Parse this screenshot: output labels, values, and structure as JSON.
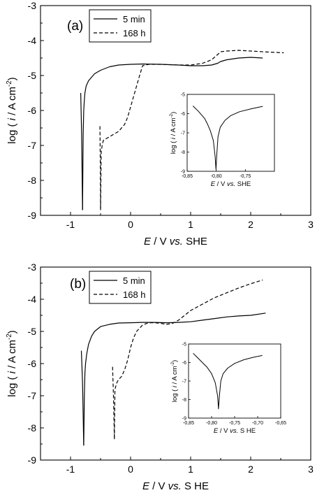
{
  "chart_data": [
    {
      "type": "line",
      "panel_label": "(a)",
      "xlabel": {
        "pre": "E",
        "mid": " / V ",
        "vs": "vs.",
        "post": " SHE"
      },
      "ylabel": {
        "pre": "log ( ",
        "i": "i",
        "mid": " /  A cm",
        "sup": "-2",
        "post": ")"
      },
      "xlim": [
        -1.5,
        3
      ],
      "ylim": [
        -9,
        -3
      ],
      "xticks": [
        -1,
        0,
        1,
        2,
        3
      ],
      "yticks": [
        -3,
        -4,
        -5,
        -6,
        -7,
        -8,
        -9
      ],
      "legend": "top-left",
      "series": [
        {
          "name": "5 min",
          "style": "solid",
          "x": [
            -0.8,
            -0.79,
            -0.78,
            -0.77,
            -0.76,
            -0.74,
            -0.7,
            -0.6,
            -0.5,
            -0.35,
            -0.2,
            0,
            0.2,
            0.5,
            0.8,
            1.0,
            1.2,
            1.35,
            1.45,
            1.5,
            1.6,
            1.8,
            2.0,
            2.2
          ],
          "y": [
            -8.85,
            -6.7,
            -6.0,
            -5.7,
            -5.5,
            -5.3,
            -5.15,
            -4.95,
            -4.85,
            -4.75,
            -4.7,
            -4.68,
            -4.67,
            -4.68,
            -4.7,
            -4.72,
            -4.72,
            -4.7,
            -4.65,
            -4.6,
            -4.55,
            -4.5,
            -4.48,
            -4.5
          ]
        },
        {
          "name": "5 min",
          "style": "solid",
          "x": [
            -0.83,
            -0.815,
            -0.8
          ],
          "y": [
            -5.5,
            -6.7,
            -8.85
          ]
        },
        {
          "name": "168 h",
          "style": "dashed",
          "x": [
            -0.5,
            -0.49,
            -0.47,
            -0.45,
            -0.4,
            -0.3,
            -0.2,
            -0.1,
            -0.05,
            0,
            0.05,
            0.1,
            0.15,
            0.2,
            0.3,
            0.5,
            0.8,
            1.0,
            1.2,
            1.35,
            1.45,
            1.5,
            1.6,
            1.8,
            2.0,
            2.3,
            2.55
          ],
          "y": [
            -8.85,
            -7.2,
            -6.95,
            -6.85,
            -6.8,
            -6.7,
            -6.6,
            -6.4,
            -6.2,
            -5.9,
            -5.6,
            -5.3,
            -5.0,
            -4.72,
            -4.68,
            -4.68,
            -4.7,
            -4.7,
            -4.65,
            -4.55,
            -4.4,
            -4.32,
            -4.3,
            -4.28,
            -4.3,
            -4.33,
            -4.35
          ]
        },
        {
          "name": "168 h",
          "style": "dashed",
          "x": [
            -0.51,
            -0.505,
            -0.5
          ],
          "y": [
            -6.45,
            -7.4,
            -8.85
          ]
        }
      ],
      "inset": {
        "xlabel": {
          "pre": "E",
          "mid": " / V ",
          "vs": "vs.",
          "post": " SHE"
        },
        "ylabel": {
          "pre": "log ( ",
          "i": "i",
          "mid": " /  A cm",
          "sup": "-2",
          "post": ")"
        },
        "xlim": [
          -0.85,
          -0.7
        ],
        "ylim": [
          -9,
          -5
        ],
        "xticks": [
          -0.85,
          -0.8,
          -0.75
        ],
        "xticklabels": [
          "-0,85",
          "-0,80",
          "-0,75"
        ],
        "yticks": [
          -5,
          -6,
          -7,
          -8,
          -9
        ],
        "x": [
          -0.84,
          -0.83,
          -0.82,
          -0.815,
          -0.81,
          -0.805,
          -0.802,
          -0.8005,
          -0.799,
          -0.797,
          -0.793,
          -0.785,
          -0.775,
          -0.76,
          -0.74,
          -0.72
        ],
        "y": [
          -5.6,
          -5.9,
          -6.25,
          -6.55,
          -6.9,
          -7.4,
          -8.2,
          -8.9,
          -8.1,
          -7.2,
          -6.7,
          -6.35,
          -6.1,
          -5.9,
          -5.75,
          -5.62
        ]
      }
    },
    {
      "type": "line",
      "panel_label": "(b)",
      "xlabel": {
        "pre": "E",
        "mid": " / V ",
        "vs": "vs.",
        "post": " S HE"
      },
      "ylabel": {
        "pre": "log ( ",
        "i": "i",
        "mid": " /  A cm",
        "sup": "-2",
        "post": ")"
      },
      "xlim": [
        -1.5,
        3
      ],
      "ylim": [
        -9,
        -3
      ],
      "xticks": [
        -1,
        0,
        1,
        2,
        3
      ],
      "yticks": [
        -3,
        -4,
        -5,
        -6,
        -7,
        -8,
        -9
      ],
      "legend": "top-left",
      "series": [
        {
          "name": "5 min",
          "style": "solid",
          "x": [
            -0.78,
            -0.77,
            -0.76,
            -0.75,
            -0.73,
            -0.7,
            -0.65,
            -0.6,
            -0.5,
            -0.35,
            -0.2,
            0,
            0.2,
            0.4,
            0.6,
            0.8,
            1.0,
            1.2,
            1.4,
            1.6,
            1.8,
            2.0,
            2.25
          ],
          "y": [
            -8.55,
            -7.0,
            -6.3,
            -6.0,
            -5.7,
            -5.4,
            -5.15,
            -5.0,
            -4.85,
            -4.78,
            -4.74,
            -4.73,
            -4.72,
            -4.72,
            -4.73,
            -4.72,
            -4.7,
            -4.65,
            -4.6,
            -4.55,
            -4.52,
            -4.5,
            -4.43
          ]
        },
        {
          "name": "5 min",
          "style": "solid",
          "x": [
            -0.82,
            -0.8,
            -0.78
          ],
          "y": [
            -5.6,
            -6.6,
            -8.55
          ]
        },
        {
          "name": "168 h",
          "style": "dashed",
          "x": [
            -0.27,
            -0.26,
            -0.23,
            -0.2,
            -0.15,
            -0.1,
            -0.05,
            0,
            0.05,
            0.1,
            0.2,
            0.3,
            0.4,
            0.5,
            0.6,
            0.7,
            0.8,
            0.9,
            1.0,
            1.2,
            1.4,
            1.6,
            1.8,
            2.0,
            2.2
          ],
          "y": [
            -8.35,
            -6.8,
            -6.6,
            -6.5,
            -6.4,
            -6.2,
            -5.9,
            -5.5,
            -5.2,
            -5.0,
            -4.8,
            -4.73,
            -4.73,
            -4.75,
            -4.78,
            -4.75,
            -4.65,
            -4.5,
            -4.35,
            -4.15,
            -3.95,
            -3.8,
            -3.65,
            -3.52,
            -3.4
          ]
        },
        {
          "name": "168 h",
          "style": "dashed",
          "x": [
            -0.3,
            -0.285,
            -0.27
          ],
          "y": [
            -6.1,
            -7.0,
            -8.35
          ]
        }
      ],
      "inset": {
        "xlabel": {
          "pre": "E",
          "mid": " / V ",
          "vs": "vs.",
          "post": " S HE"
        },
        "ylabel": {
          "pre": "log ( ",
          "i": "i",
          "mid": " /  A cm",
          "sup": "-2",
          "post": ")"
        },
        "xlim": [
          -0.85,
          -0.65
        ],
        "ylim": [
          -9,
          -5
        ],
        "xticks": [
          -0.85,
          -0.8,
          -0.75,
          -0.7,
          -0.65
        ],
        "xticklabels": [
          "-0,85",
          "-0,80",
          "-0,75",
          "-0,70",
          "-0,65"
        ],
        "yticks": [
          -5,
          -6,
          -7,
          -8,
          -9
        ],
        "x": [
          -0.84,
          -0.83,
          -0.82,
          -0.81,
          -0.8,
          -0.792,
          -0.787,
          -0.785,
          -0.783,
          -0.78,
          -0.775,
          -0.765,
          -0.75,
          -0.73,
          -0.71,
          -0.69
        ],
        "y": [
          -5.5,
          -5.75,
          -6.0,
          -6.25,
          -6.6,
          -7.1,
          -7.8,
          -8.5,
          -7.8,
          -7.0,
          -6.6,
          -6.3,
          -6.05,
          -5.85,
          -5.72,
          -5.62
        ]
      }
    }
  ]
}
